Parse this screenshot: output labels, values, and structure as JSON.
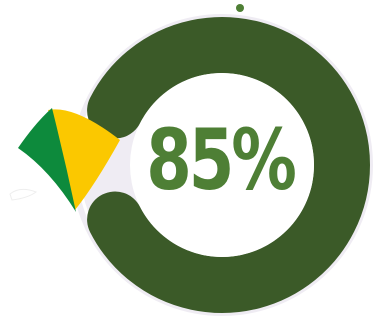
{
  "indicator": {
    "label": "85%",
    "value": 85
  },
  "colors": {
    "ring": "#3b5a28",
    "text": "#4e7f35",
    "track": "#efecf3",
    "dot": "#4e7f35",
    "flag_green": "#0d8a3c",
    "flag_yellow": "#fbc800"
  },
  "icons": {
    "flag": "brazil-flag-fragment-icon",
    "dot": "dot-icon"
  }
}
